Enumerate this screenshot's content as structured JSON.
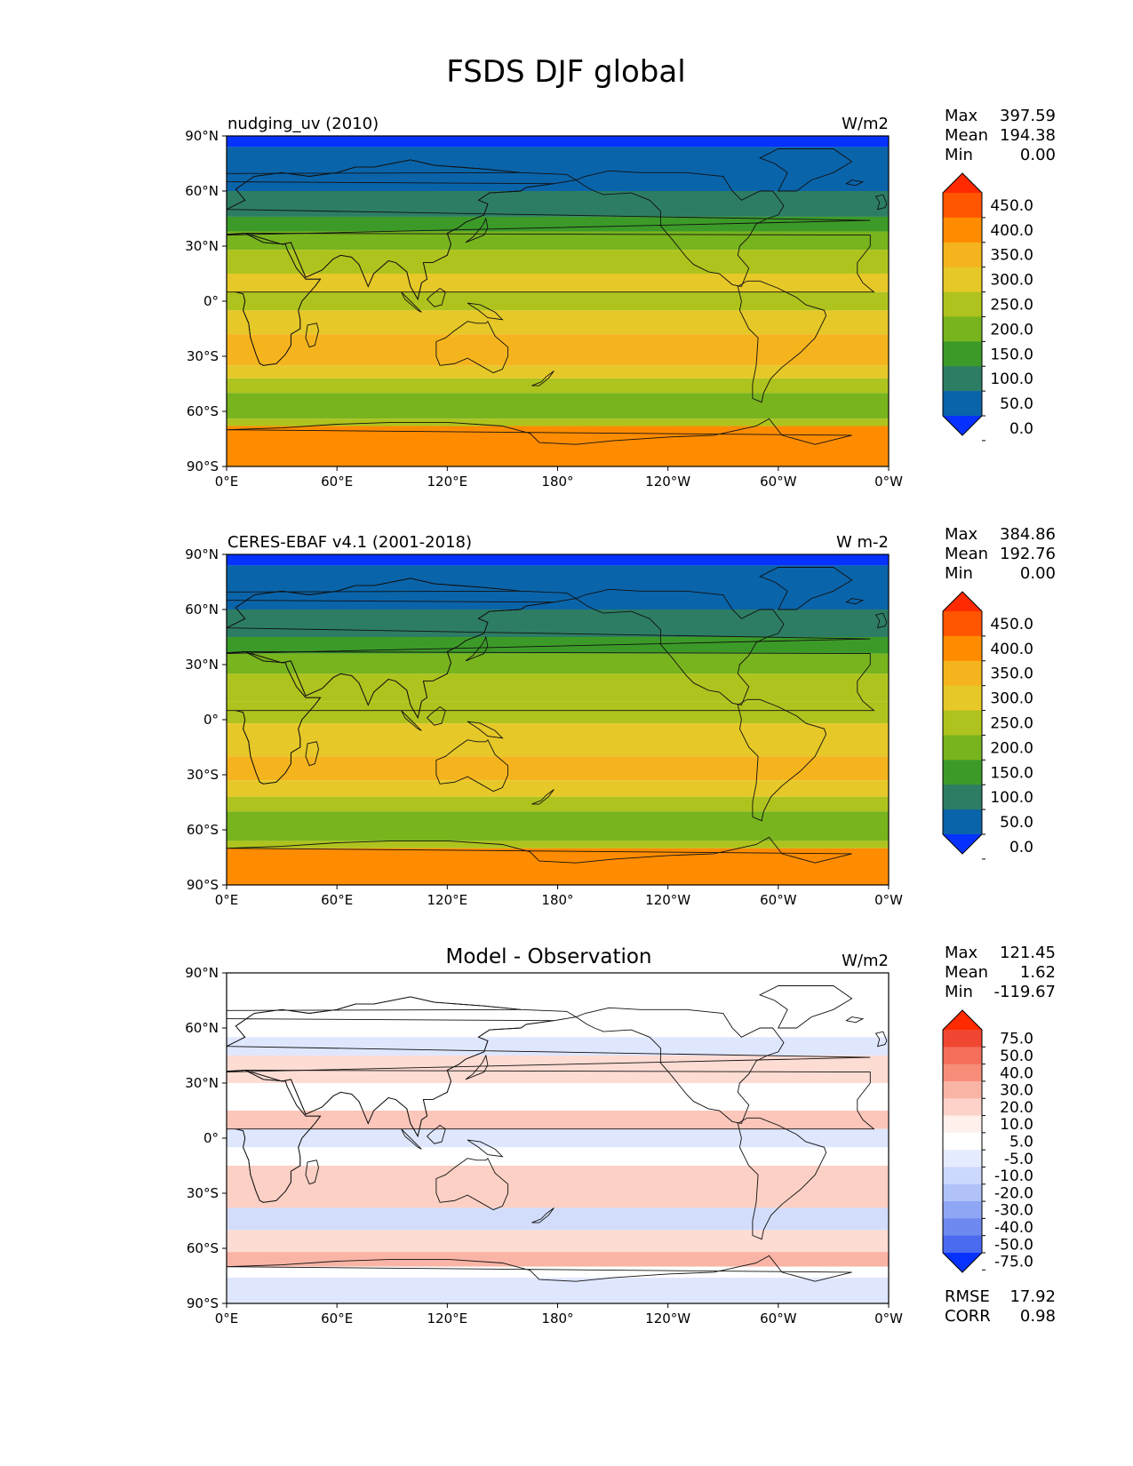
{
  "figure_title": "FSDS DJF global",
  "lat_ticks": [
    "90°N",
    "60°N",
    "30°N",
    "0°",
    "30°S",
    "60°S",
    "90°S"
  ],
  "lon_ticks": [
    "0°E",
    "60°E",
    "120°E",
    "180°",
    "120°W",
    "60°W",
    "0°W"
  ],
  "panels": [
    {
      "left_title": "nudging_uv (2010)",
      "center_title": "",
      "units": "W/m2",
      "stats": [
        {
          "label": "Max",
          "value": "397.59"
        },
        {
          "label": "Mean",
          "value": "194.38"
        },
        {
          "label": "Min",
          "value": "0.00"
        }
      ],
      "colorbar": {
        "labels": [
          "450.0",
          "400.0",
          "350.0",
          "300.0",
          "250.0",
          "200.0",
          "150.0",
          "100.0",
          "50.0",
          "0.0"
        ],
        "colors": [
          "#ff2a00",
          "#ff5500",
          "#ff8c00",
          "#f5b41e",
          "#e6c828",
          "#afc31e",
          "#78b41e",
          "#3c9b28",
          "#2d7d64",
          "#0a64aa",
          "#0532ff"
        ]
      },
      "bands": [
        {
          "lat": [
            90,
            84
          ],
          "color": "#0532ff"
        },
        {
          "lat": [
            84,
            60
          ],
          "color": "#0a64aa"
        },
        {
          "lat": [
            60,
            46
          ],
          "color": "#2d7d64"
        },
        {
          "lat": [
            46,
            38
          ],
          "color": "#3c9b28"
        },
        {
          "lat": [
            38,
            28
          ],
          "color": "#78b41e"
        },
        {
          "lat": [
            28,
            15
          ],
          "color": "#afc31e"
        },
        {
          "lat": [
            15,
            5
          ],
          "color": "#e6c828"
        },
        {
          "lat": [
            5,
            -5
          ],
          "color": "#afc31e"
        },
        {
          "lat": [
            -5,
            -18
          ],
          "color": "#e6c828"
        },
        {
          "lat": [
            -18,
            -35
          ],
          "color": "#f5b41e"
        },
        {
          "lat": [
            -35,
            -42
          ],
          "color": "#e6c828"
        },
        {
          "lat": [
            -42,
            -50
          ],
          "color": "#afc31e"
        },
        {
          "lat": [
            -50,
            -64
          ],
          "color": "#78b41e"
        },
        {
          "lat": [
            -64,
            -68
          ],
          "color": "#afc31e"
        },
        {
          "lat": [
            -68,
            -90
          ],
          "color": "#ff8c00"
        }
      ]
    },
    {
      "left_title": "CERES-EBAF v4.1 (2001-2018)",
      "center_title": "",
      "units": "W m-2",
      "stats": [
        {
          "label": "Max",
          "value": "384.86"
        },
        {
          "label": "Mean",
          "value": "192.76"
        },
        {
          "label": "Min",
          "value": "0.00"
        }
      ],
      "colorbar": {
        "labels": [
          "450.0",
          "400.0",
          "350.0",
          "300.0",
          "250.0",
          "200.0",
          "150.0",
          "100.0",
          "50.0",
          "0.0"
        ],
        "colors": [
          "#ff2a00",
          "#ff5500",
          "#ff8c00",
          "#f5b41e",
          "#e6c828",
          "#afc31e",
          "#78b41e",
          "#3c9b28",
          "#2d7d64",
          "#0a64aa",
          "#0532ff"
        ]
      },
      "bands": [
        {
          "lat": [
            90,
            84
          ],
          "color": "#0532ff"
        },
        {
          "lat": [
            84,
            60
          ],
          "color": "#0a64aa"
        },
        {
          "lat": [
            60,
            45
          ],
          "color": "#2d7d64"
        },
        {
          "lat": [
            45,
            36
          ],
          "color": "#3c9b28"
        },
        {
          "lat": [
            36,
            25
          ],
          "color": "#78b41e"
        },
        {
          "lat": [
            25,
            10
          ],
          "color": "#afc31e"
        },
        {
          "lat": [
            10,
            -2
          ],
          "color": "#afc31e"
        },
        {
          "lat": [
            -2,
            -20
          ],
          "color": "#e6c828"
        },
        {
          "lat": [
            -20,
            -33
          ],
          "color": "#f5b41e"
        },
        {
          "lat": [
            -33,
            -42
          ],
          "color": "#e6c828"
        },
        {
          "lat": [
            -42,
            -50
          ],
          "color": "#afc31e"
        },
        {
          "lat": [
            -50,
            -66
          ],
          "color": "#78b41e"
        },
        {
          "lat": [
            -66,
            -70
          ],
          "color": "#afc31e"
        },
        {
          "lat": [
            -70,
            -90
          ],
          "color": "#ff8c00"
        }
      ]
    },
    {
      "left_title": "",
      "center_title": "Model - Observation",
      "units": "W/m2",
      "stats": [
        {
          "label": "Max",
          "value": "121.45"
        },
        {
          "label": "Mean",
          "value": "1.62"
        },
        {
          "label": "Min",
          "value": "-119.67"
        }
      ],
      "extra_stats": [
        {
          "label": "RMSE",
          "value": "17.92"
        },
        {
          "label": "CORR",
          "value": "0.98"
        }
      ],
      "colorbar": {
        "labels": [
          "75.0",
          "50.0",
          "40.0",
          "30.0",
          "20.0",
          "10.0",
          "5.0",
          "-5.0",
          "-10.0",
          "-20.0",
          "-30.0",
          "-40.0",
          "-50.0",
          "-75.0"
        ],
        "colors": [
          "#ff2a00",
          "#f04632",
          "#f46e5a",
          "#f78c78",
          "#fab4a5",
          "#fdd2c8",
          "#fff0ec",
          "#ffffff",
          "#e6ecff",
          "#ccd8fc",
          "#b0c2f8",
          "#8ea6f4",
          "#6e8af0",
          "#4a6af0",
          "#0532ff"
        ]
      },
      "bands": [
        {
          "lat": [
            90,
            55
          ],
          "color": "#ffffff"
        },
        {
          "lat": [
            55,
            45
          ],
          "color": "#dfe7ff"
        },
        {
          "lat": [
            45,
            30
          ],
          "color": "#fddcd4"
        },
        {
          "lat": [
            30,
            15
          ],
          "color": "#ffffff"
        },
        {
          "lat": [
            15,
            5
          ],
          "color": "#fcc6ba"
        },
        {
          "lat": [
            5,
            -5
          ],
          "color": "#dfe7ff"
        },
        {
          "lat": [
            -5,
            -15
          ],
          "color": "#ffffff"
        },
        {
          "lat": [
            -15,
            -38
          ],
          "color": "#fcd0c4"
        },
        {
          "lat": [
            -38,
            -50
          ],
          "color": "#d2ddfb"
        },
        {
          "lat": [
            -50,
            -62
          ],
          "color": "#fddcd4"
        },
        {
          "lat": [
            -62,
            -70
          ],
          "color": "#fab4a5"
        },
        {
          "lat": [
            -70,
            -76
          ],
          "color": "#ffffff"
        },
        {
          "lat": [
            -76,
            -90
          ],
          "color": "#dfe7ff"
        }
      ]
    }
  ]
}
